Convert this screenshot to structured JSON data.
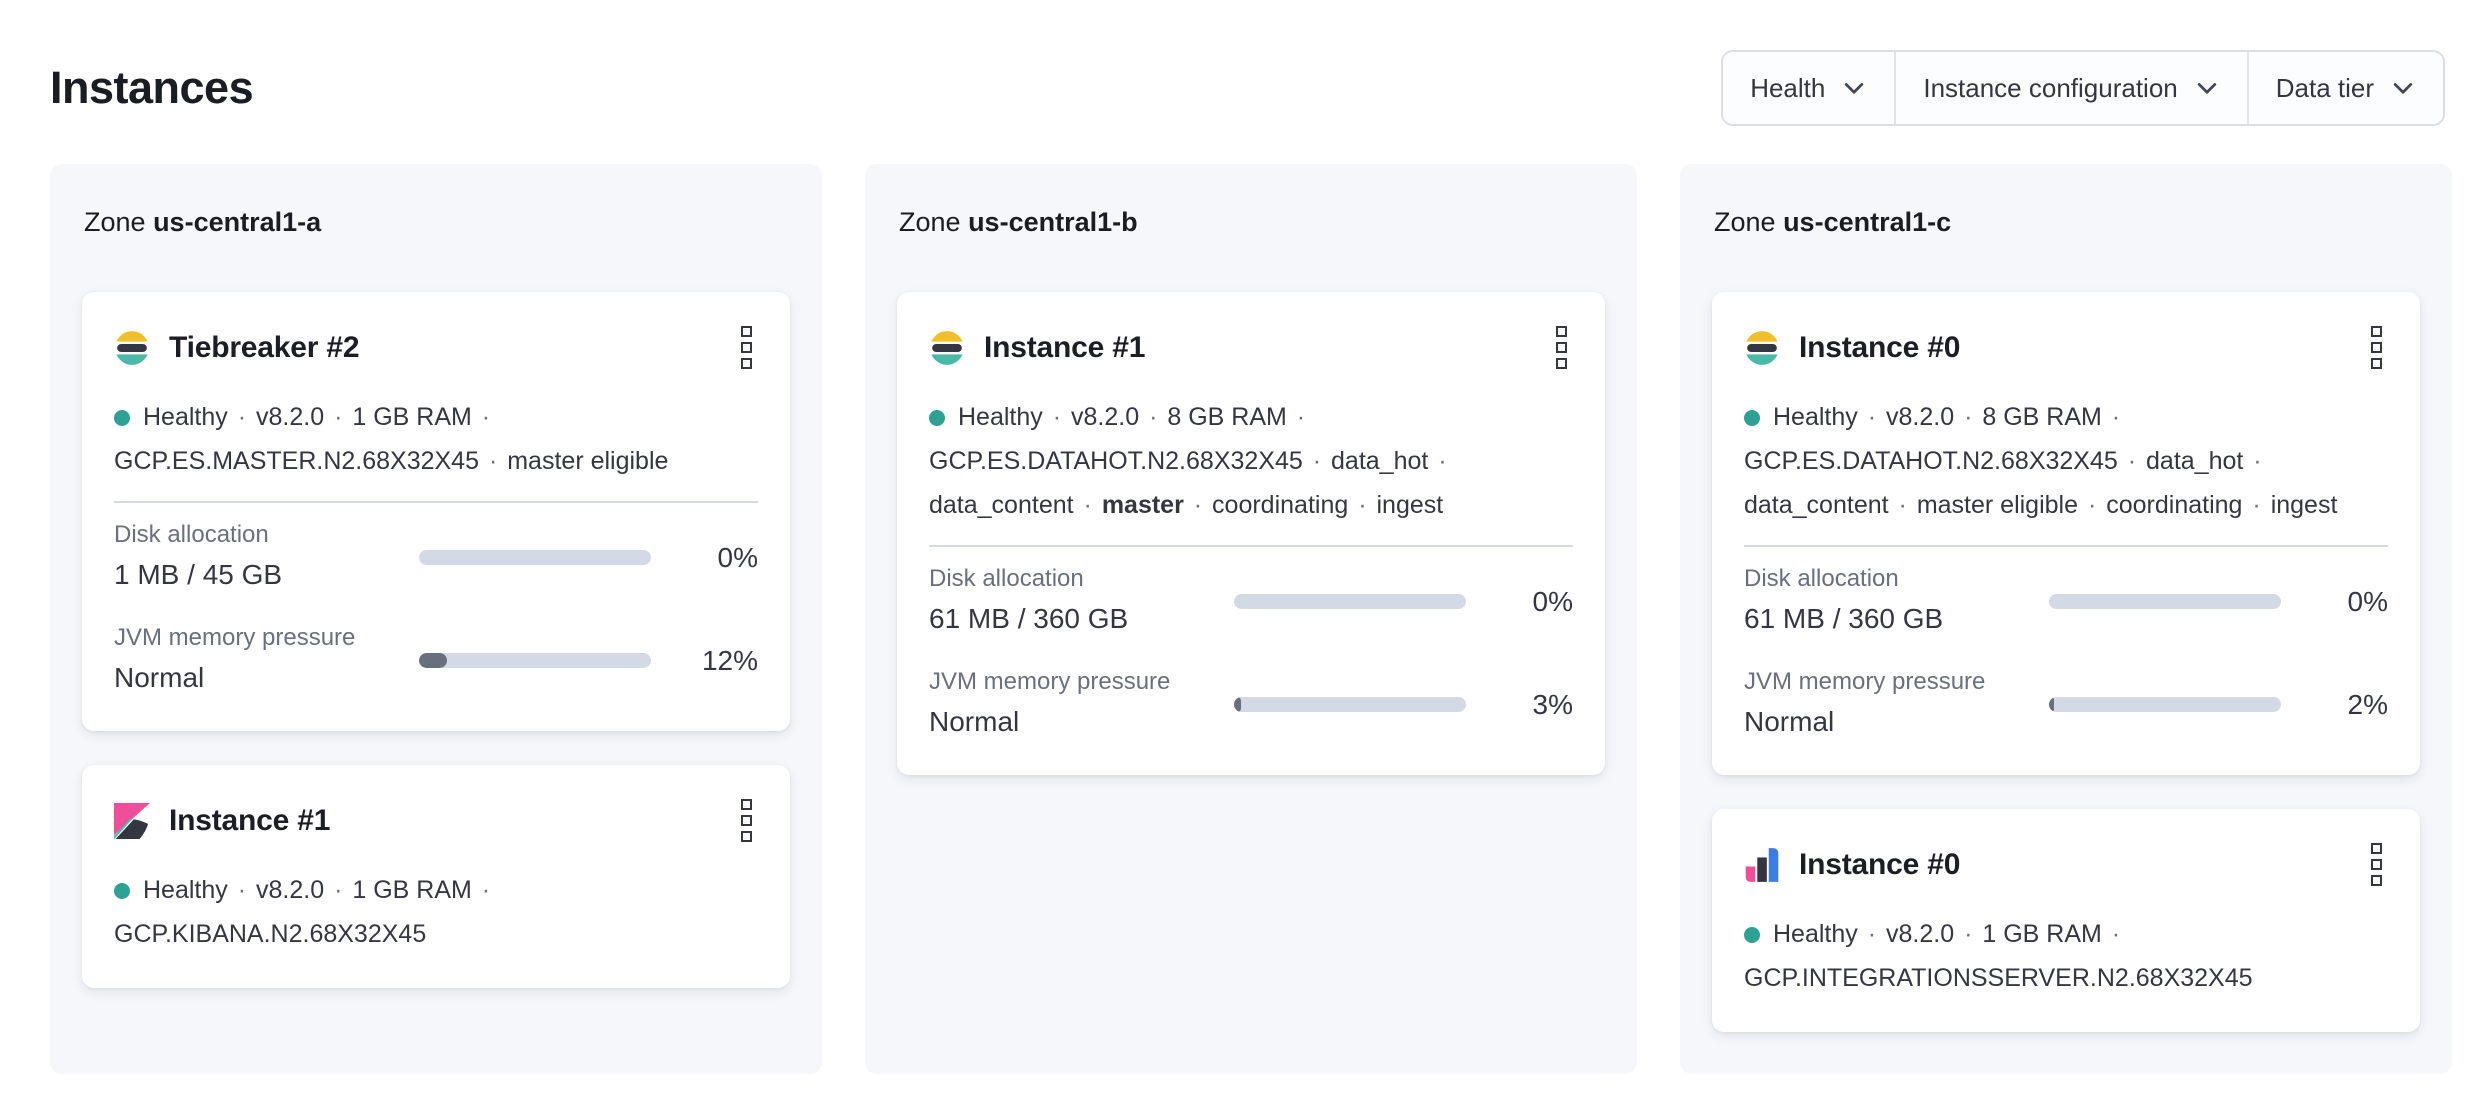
{
  "ui": {
    "sep": "·",
    "zone_prefix": "Zone"
  },
  "header": {
    "title": "Instances"
  },
  "filters": [
    {
      "label": "Health"
    },
    {
      "label": "Instance configuration"
    },
    {
      "label": "Data tier"
    }
  ],
  "labels": {
    "disk": "Disk allocation",
    "jvm": "JVM memory pressure"
  },
  "zones": [
    {
      "name": "us-central1-a",
      "cards": [
        {
          "icon": "elasticsearch-logo",
          "title": "Tiebreaker #2",
          "health": "Healthy",
          "version": "v8.2.0",
          "ram": "1 GB RAM",
          "config": "GCP.ES.MASTER.N2.68X32X45",
          "roles": [
            "master eligible"
          ],
          "disk": {
            "value": "1 MB / 45 GB",
            "pct_label": "0%",
            "pct": 0
          },
          "jvm": {
            "value": "Normal",
            "pct_label": "12%",
            "pct": 12
          }
        },
        {
          "icon": "kibana-logo",
          "title": "Instance #1",
          "health": "Healthy",
          "version": "v8.2.0",
          "ram": "1 GB RAM",
          "config": "GCP.KIBANA.N2.68X32X45",
          "roles": []
        }
      ]
    },
    {
      "name": "us-central1-b",
      "cards": [
        {
          "icon": "elasticsearch-logo",
          "title": "Instance #1",
          "health": "Healthy",
          "version": "v8.2.0",
          "ram": "8 GB RAM",
          "config": "GCP.ES.DATAHOT.N2.68X32X45",
          "roles": [
            "data_hot",
            "data_content",
            "master",
            "coordinating",
            "ingest"
          ],
          "bold_role": "master",
          "disk": {
            "value": "61 MB / 360 GB",
            "pct_label": "0%",
            "pct": 0
          },
          "jvm": {
            "value": "Normal",
            "pct_label": "3%",
            "pct": 3
          }
        }
      ]
    },
    {
      "name": "us-central1-c",
      "cards": [
        {
          "icon": "elasticsearch-logo",
          "title": "Instance #0",
          "health": "Healthy",
          "version": "v8.2.0",
          "ram": "8 GB RAM",
          "config": "GCP.ES.DATAHOT.N2.68X32X45",
          "roles": [
            "data_hot",
            "data_content",
            "master eligible",
            "coordinating",
            "ingest"
          ],
          "disk": {
            "value": "61 MB / 360 GB",
            "pct_label": "0%",
            "pct": 0
          },
          "jvm": {
            "value": "Normal",
            "pct_label": "2%",
            "pct": 2
          }
        },
        {
          "icon": "integrations-server-logo",
          "title": "Instance #0",
          "health": "Healthy",
          "version": "v8.2.0",
          "ram": "1 GB RAM",
          "config": "GCP.INTEGRATIONSSERVER.N2.68X32X45",
          "roles": []
        }
      ]
    }
  ],
  "colors": {
    "health_ok": "#2da294",
    "panel_bg": "#f5f7fb",
    "track": "#d3dae6",
    "jvm_fill": "#69707d",
    "text": "#343741",
    "subdued": "#69707d",
    "es_yellow": "#f1bf29",
    "es_dark": "#343741",
    "es_teal": "#4ab9aa",
    "kibana_pink": "#f04e98",
    "integrations_blue": "#3b7de2",
    "chevron": "#404754"
  }
}
